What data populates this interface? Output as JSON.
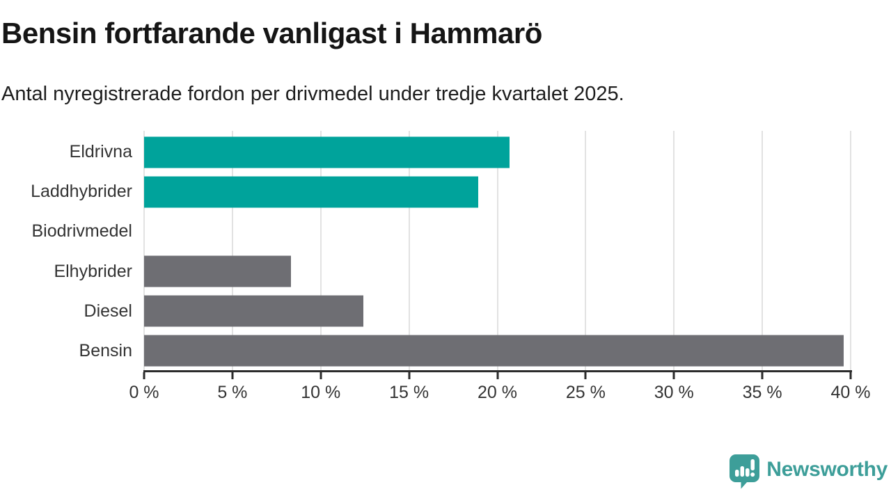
{
  "header": {
    "title": "Bensin fortfarande vanligast i Hammarö",
    "subtitle": "Antal nyregistrerade fordon per drivmedel under tredje kvartalet 2025."
  },
  "chart_data": {
    "type": "bar",
    "orientation": "horizontal",
    "title": "Bensin fortfarande vanligast i Hammarö",
    "subtitle": "Antal nyregistrerade fordon per drivmedel under tredje kvartalet 2025.",
    "categories": [
      "Eldrivna",
      "Laddhybrider",
      "Biodrivmedel",
      "Elhybrider",
      "Diesel",
      "Bensin"
    ],
    "values": [
      20.7,
      18.9,
      0,
      8.3,
      12.4,
      39.6
    ],
    "bar_colors": [
      "#00a39b",
      "#00a39b",
      "#6e6e73",
      "#6e6e73",
      "#6e6e73",
      "#6e6e73"
    ],
    "xlabel": "",
    "ylabel": "",
    "xlim": [
      0,
      40
    ],
    "x_ticks": [
      {
        "value": 0,
        "label": "0 %"
      },
      {
        "value": 5,
        "label": "5 %"
      },
      {
        "value": 10,
        "label": "10 %"
      },
      {
        "value": 15,
        "label": "15 %"
      },
      {
        "value": 20,
        "label": "20 %"
      },
      {
        "value": 25,
        "label": "25 %"
      },
      {
        "value": 30,
        "label": "30 %"
      },
      {
        "value": 35,
        "label": "35 %"
      },
      {
        "value": 40,
        "label": "40 %"
      }
    ],
    "grid": "vertical",
    "legend": "none"
  },
  "colors": {
    "accent_teal": "#00a39b",
    "bar_gray": "#6e6e73",
    "gridline": "#e2e2e2",
    "axis": "#2b2b2b",
    "label": "#333333",
    "logo_teal": "#3d9e99"
  },
  "branding": {
    "logo_text": "Newsworthy",
    "logo_icon": "newsworthy-bar-chart-bubble-icon"
  }
}
